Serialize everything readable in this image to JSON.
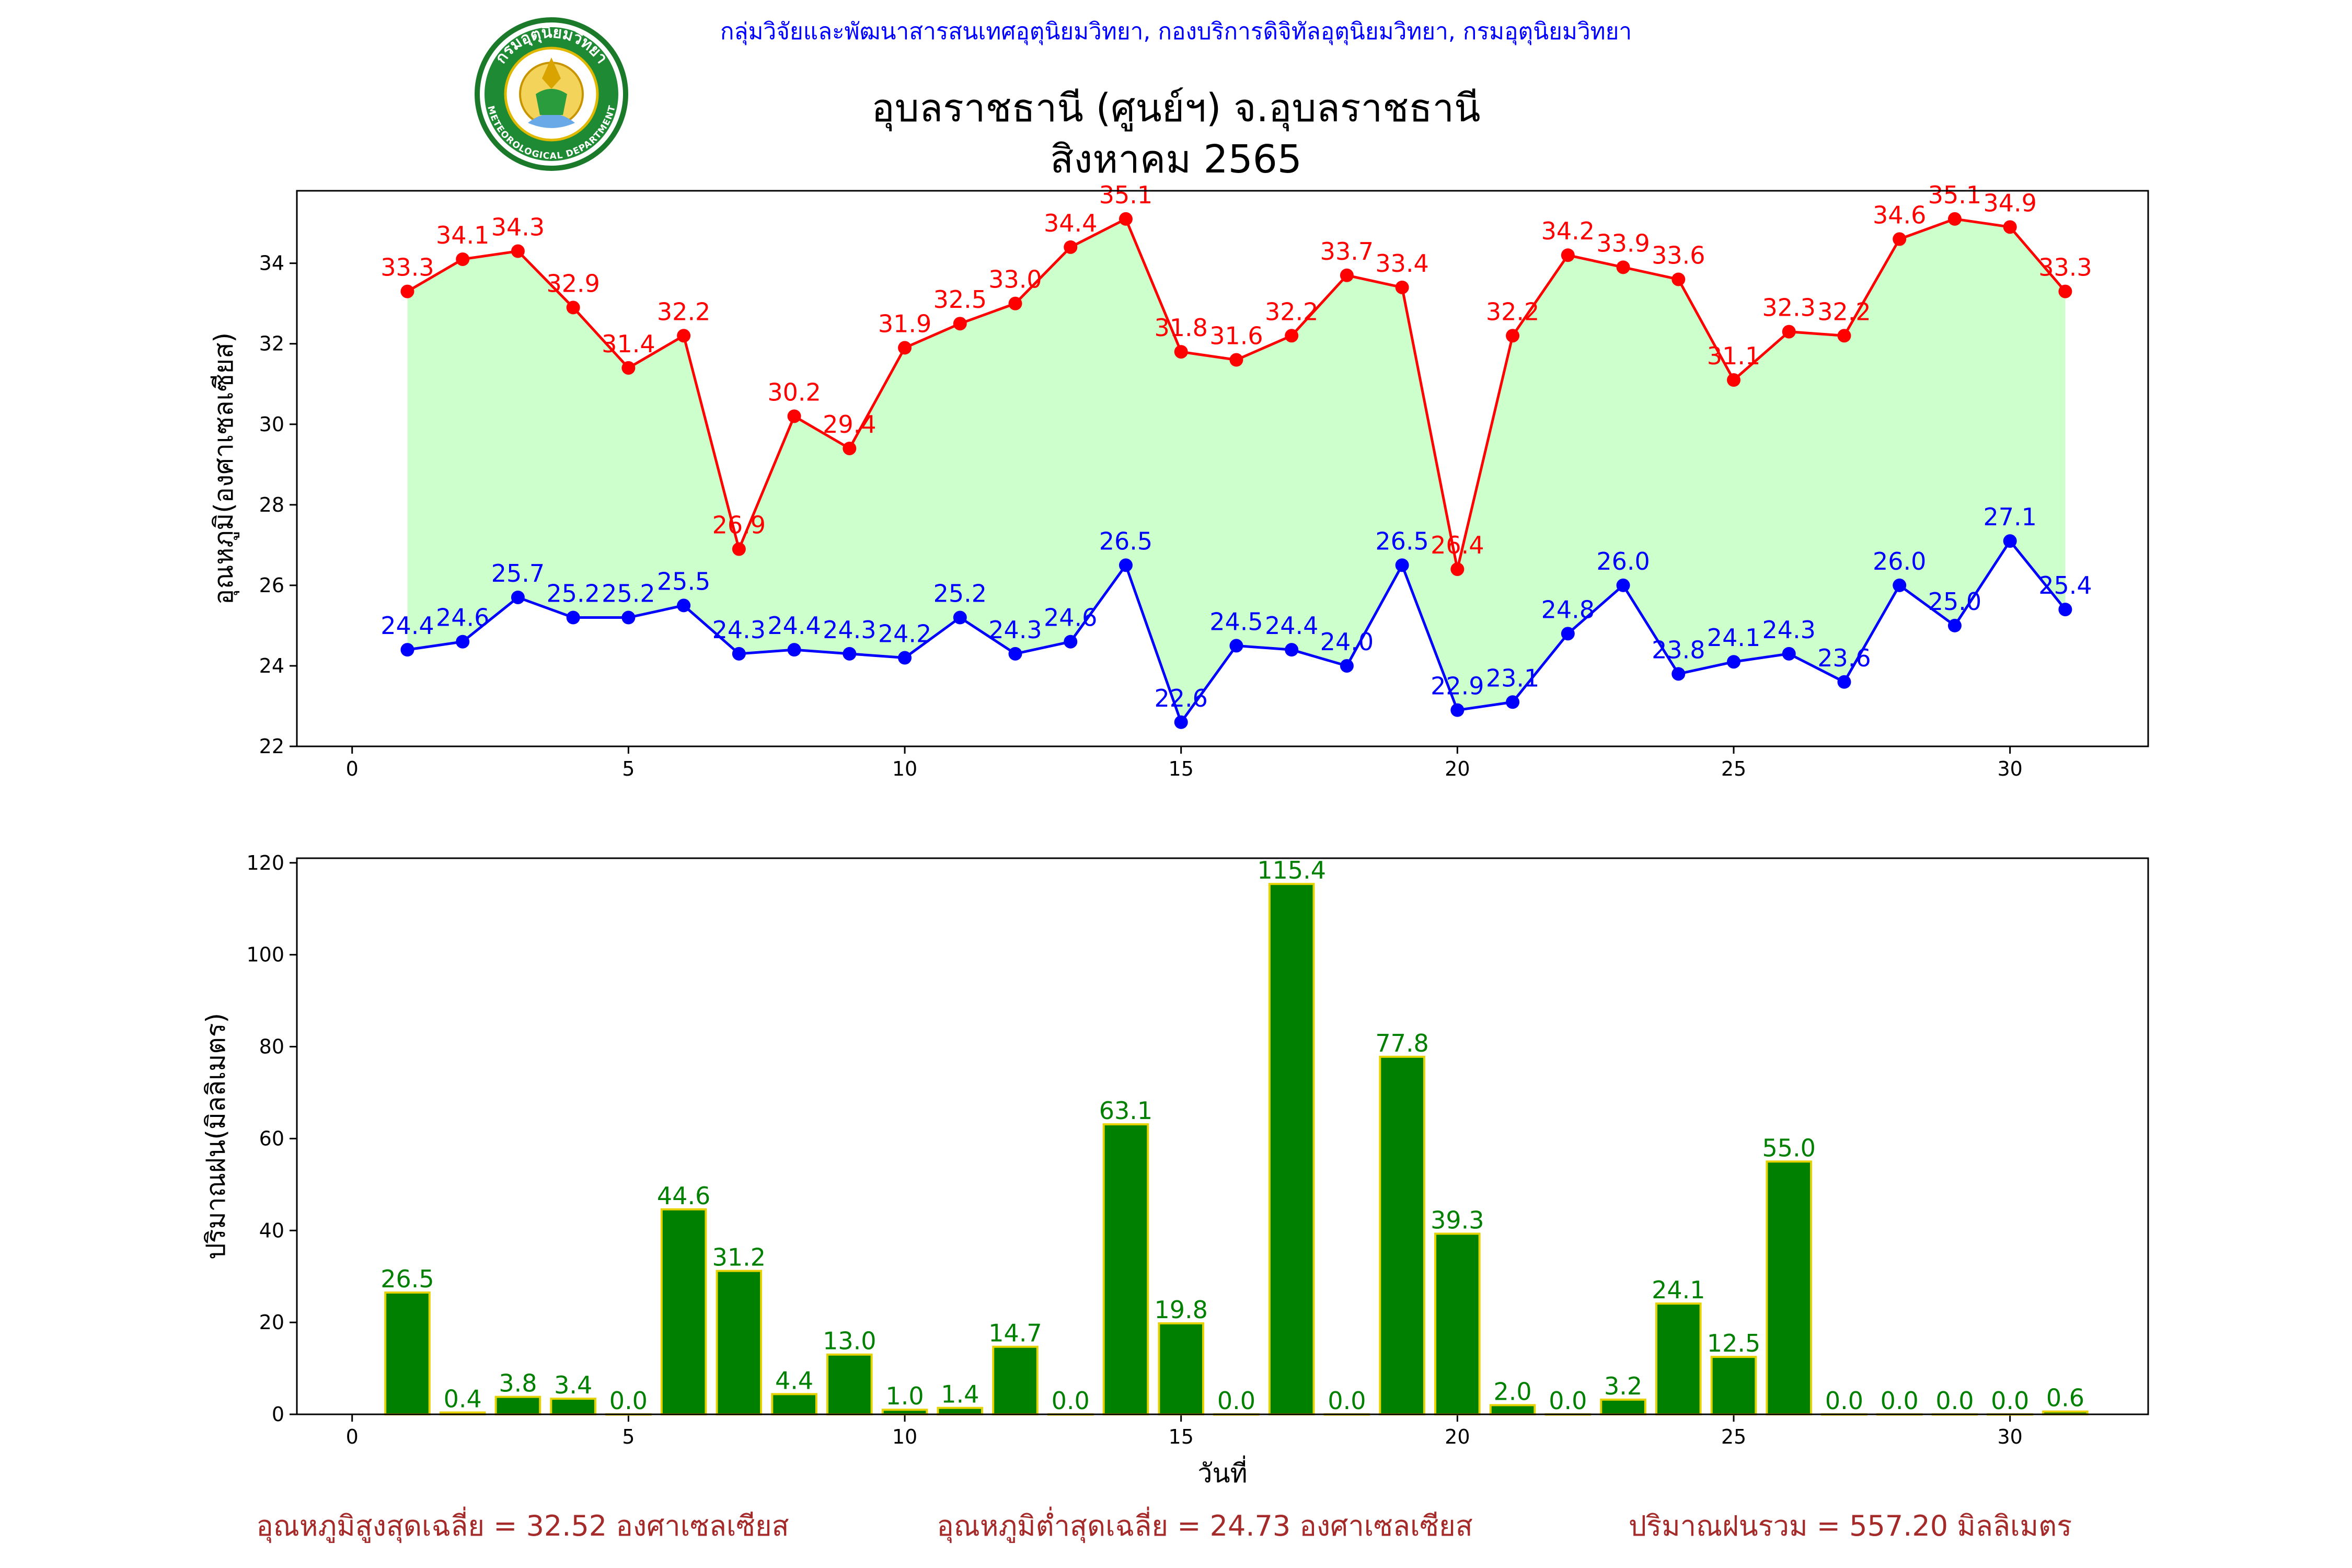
{
  "header": {
    "organization": "กลุ่มวิจัยและพัฒนาสารสนเทศอุตุนิยมวิทยา, กองบริการดิจิทัลอุตุนิยมวิทยา, กรมอุตุนิยมวิทยา",
    "logo_top_text": "กรมอุตุนิยมวิทยา",
    "logo_bottom_text": "METEOROLOGICAL DEPARTMENT"
  },
  "title": {
    "line1": "อุบลราชธานี (ศูนย์ฯ) จ.อุบลราชธานี",
    "line2": "สิงหาคม 2565"
  },
  "chart_data": [
    {
      "type": "line",
      "ylabel": "อุณหภูมิ(องศาเซลเซียส)",
      "xlabel": "",
      "xlim": [
        -1,
        32.5
      ],
      "ylim": [
        22,
        35.8
      ],
      "xticks": [
        0,
        5,
        10,
        15,
        20,
        25,
        30
      ],
      "yticks": [
        22,
        24,
        26,
        28,
        30,
        32,
        34
      ],
      "x": [
        1,
        2,
        3,
        4,
        5,
        6,
        7,
        8,
        9,
        10,
        11,
        12,
        13,
        14,
        15,
        16,
        17,
        18,
        19,
        20,
        21,
        22,
        23,
        24,
        25,
        26,
        27,
        28,
        29,
        30,
        31
      ],
      "fill_between": {
        "color": "#ccffcc"
      },
      "series": [
        {
          "key": "max",
          "color": "#ff0000",
          "values": [
            33.3,
            34.1,
            34.3,
            32.9,
            31.4,
            32.2,
            26.9,
            30.2,
            29.4,
            31.9,
            32.5,
            33.0,
            34.4,
            35.1,
            31.8,
            31.6,
            32.2,
            33.7,
            33.4,
            26.4,
            32.2,
            34.2,
            33.9,
            33.6,
            31.1,
            32.3,
            32.2,
            34.6,
            35.1,
            34.9,
            33.3
          ],
          "labels": [
            "33.3",
            "34.1",
            "34.3",
            "32.9",
            "31.4",
            "32.2",
            "26.9",
            "30.2",
            "29.4",
            "31.9",
            "32.5",
            "33.0",
            "34.4",
            "35.1",
            "31.8",
            "31.6",
            "32.2",
            "33.7",
            "33.4",
            "26.4",
            "32.2",
            "34.2",
            "33.9",
            "33.6",
            "31.1",
            "32.3",
            "32.2",
            "34.6",
            "35.1",
            "34.9",
            "33.3"
          ]
        },
        {
          "key": "min",
          "color": "#0000ff",
          "values": [
            24.4,
            24.6,
            25.7,
            25.2,
            25.2,
            25.5,
            24.3,
            24.4,
            24.3,
            24.2,
            25.2,
            24.3,
            24.6,
            26.5,
            22.6,
            24.5,
            24.4,
            24.0,
            26.5,
            22.9,
            23.1,
            24.8,
            26.0,
            23.8,
            24.1,
            24.3,
            23.6,
            26.0,
            25.0,
            27.1,
            25.4
          ],
          "labels": [
            "24.4",
            "24.6",
            "25.7",
            "25.2",
            "25.2",
            "25.5",
            "24.3",
            "24.4",
            "24.3",
            "24.2",
            "25.2",
            "24.3",
            "24.6",
            "26.5",
            "22.6",
            "24.5",
            "24.4",
            "24.0",
            "26.5",
            "22.9",
            "23.1",
            "24.8",
            "26.0",
            "23.8",
            "24.1",
            "24.3",
            "23.6",
            "26.0",
            "25.0",
            "27.1",
            "25.4"
          ]
        }
      ]
    },
    {
      "type": "bar",
      "ylabel": "ปริมาณฝน(มิลลิเมตร)",
      "xlabel": "วันที่",
      "xlim": [
        -1,
        32.5
      ],
      "ylim": [
        0,
        121
      ],
      "xticks": [
        0,
        5,
        10,
        15,
        20,
        25,
        30
      ],
      "yticks": [
        0,
        20,
        40,
        60,
        80,
        100,
        120
      ],
      "x": [
        1,
        2,
        3,
        4,
        5,
        6,
        7,
        8,
        9,
        10,
        11,
        12,
        13,
        14,
        15,
        16,
        17,
        18,
        19,
        20,
        21,
        22,
        23,
        24,
        25,
        26,
        27,
        28,
        29,
        30,
        31
      ],
      "bar_color": "#008000",
      "edge_color": "#e6d200",
      "label_color": "#008000",
      "values": [
        26.5,
        0.4,
        3.8,
        3.4,
        0.0,
        44.6,
        31.2,
        4.4,
        13.0,
        1.0,
        1.4,
        14.7,
        0.0,
        63.1,
        19.8,
        0.0,
        115.4,
        0.0,
        77.8,
        39.3,
        2.0,
        0.0,
        3.2,
        24.1,
        12.5,
        55.0,
        0.0,
        0.0,
        0.0,
        0.0,
        0.6
      ],
      "labels": [
        "26.5",
        "0.4",
        "3.8",
        "3.4",
        "0.0",
        "44.6",
        "31.2",
        "4.4",
        "13.0",
        "1.0",
        "1.4",
        "14.7",
        "0.0",
        "63.1",
        "19.8",
        "0.0",
        "115.4",
        "0.0",
        "77.8",
        "39.3",
        "2.0",
        "0.0",
        "3.2",
        "24.1",
        "12.5",
        "55.0",
        "0.0",
        "0.0",
        "0.0",
        "0.0",
        "0.6"
      ]
    }
  ],
  "summary": {
    "color": "#a52a2a",
    "avg_max": "อุณหภูมิสูงสุดเฉลี่ย = 32.52 องศาเซลเซียส",
    "avg_min": "อุณหภูมิต่ำสุดเฉลี่ย = 24.73 องศาเซลเซียส",
    "total_rain": "ปริมาณฝนรวม = 557.20 มิลลิเมตร"
  }
}
